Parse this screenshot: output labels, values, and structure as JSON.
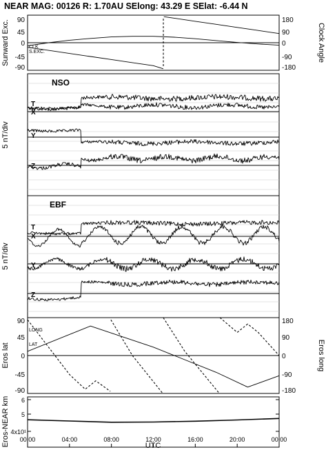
{
  "header": {
    "title": "NEAR MAG: 00126  R: 1.70AU  SElong:   43.29 E  SElat:   -6.44 N"
  },
  "chart_data": [
    {
      "id": "orientation",
      "type": "line",
      "ylabel_left": "Sunward Exc.",
      "ylabel_right": "Clock Angle",
      "yticks_left": [
        "90",
        "45",
        "0",
        "-45",
        "-90"
      ],
      "yticks_right": [
        "180",
        "90",
        "0",
        "-90",
        "-180"
      ],
      "ylim_left": [
        -90,
        90
      ],
      "ylim_right": [
        -180,
        180
      ],
      "annotations": [
        "CLK",
        "S.EXC."
      ],
      "series": [
        {
          "name": "CLK",
          "axis": "right",
          "style": "solid",
          "x": [
            0,
            2,
            4,
            6,
            8,
            10,
            12,
            12.95,
            13.0,
            14,
            16,
            18,
            20,
            22,
            24
          ],
          "y": [
            -30,
            -50,
            -70,
            -90,
            -110,
            -130,
            -150,
            -170,
            170,
            160,
            140,
            120,
            100,
            80,
            60
          ]
        },
        {
          "name": "S.EXC.",
          "axis": "left",
          "style": "solid",
          "x": [
            0,
            2,
            4,
            6,
            8,
            10,
            12,
            14,
            16,
            18,
            20,
            22,
            24
          ],
          "y": [
            -10,
            0,
            8,
            14,
            19,
            21,
            21,
            18,
            13,
            7,
            1,
            -4,
            -8
          ]
        }
      ]
    },
    {
      "id": "nso",
      "type": "line",
      "panel_label": "NSO",
      "ylabel": "5 nT/div",
      "component_labels": [
        "T",
        "X",
        "Y",
        "Z"
      ]
    },
    {
      "id": "ebf",
      "type": "line",
      "panel_label": "EBF",
      "ylabel": "5 nT/div",
      "component_labels": [
        "T",
        "X",
        "Y",
        "Z"
      ]
    },
    {
      "id": "eros-pos",
      "type": "line",
      "ylabel_left": "Eros lat",
      "ylabel_right": "Eros long",
      "yticks_left": [
        "90",
        "45",
        "0",
        "-45",
        "-90"
      ],
      "yticks_right": [
        "180",
        "90",
        "0",
        "-90",
        "-180"
      ],
      "ylim_left": [
        -90,
        90
      ],
      "ylim_right": [
        -180,
        180
      ],
      "annotations": [
        "LONG",
        "LAT"
      ],
      "series": [
        {
          "name": "LAT",
          "axis": "left",
          "style": "solid",
          "x": [
            0,
            6,
            12,
            18,
            21,
            24
          ],
          "y": [
            10,
            70,
            20,
            -40,
            -75,
            -48
          ]
        },
        {
          "name": "LONG",
          "axis": "right",
          "style": "dashed",
          "x": [
            0,
            2,
            4,
            5.5,
            6.5,
            7.9,
            7.95,
            10,
            12.9,
            12.95,
            15,
            18.3,
            18.35,
            20,
            21,
            22,
            24
          ],
          "y": [
            170,
            40,
            -90,
            -160,
            -120,
            -170,
            170,
            0,
            -180,
            180,
            20,
            -180,
            180,
            110,
            150,
            110,
            0
          ]
        }
      ]
    },
    {
      "id": "range",
      "type": "line",
      "ylabel": "Eros-NEAR km",
      "yticks": [
        "6",
        "5",
        "4x10¹"
      ],
      "xticks": [
        "00:00",
        "04:00",
        "08:00",
        "12:00",
        "16:00",
        "20:00",
        "00:00"
      ],
      "xlabel": "UTC",
      "series": [
        {
          "name": "range",
          "style": "solid",
          "x": [
            0,
            4,
            8,
            12,
            16,
            20,
            24
          ],
          "y": [
            51.6,
            51.0,
            50.4,
            50.5,
            50.9,
            51.5,
            52.2
          ]
        }
      ]
    }
  ]
}
